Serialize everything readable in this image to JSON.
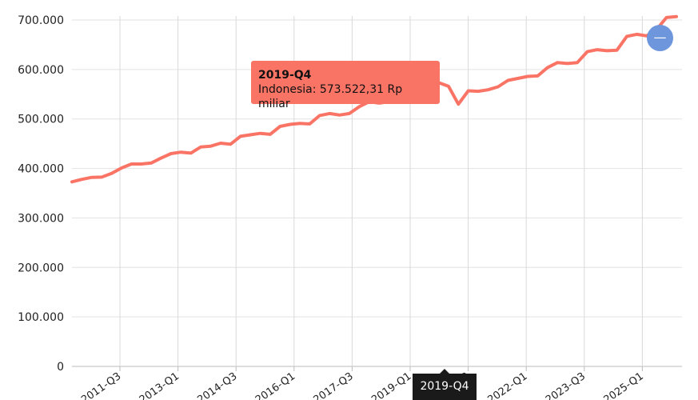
{
  "chart_data": {
    "type": "line",
    "series": [
      {
        "values": [
          373000,
          378000,
          382000,
          382500,
          390000,
          401000,
          409000,
          409000,
          411000,
          421000,
          430000,
          433000,
          431000,
          443500,
          445000,
          451000,
          449000,
          465000,
          468000,
          471000,
          469000,
          485000,
          489000,
          491000,
          490000,
          507000,
          511000,
          508000,
          511000,
          525000,
          535000,
          532000,
          535000,
          550000,
          555000,
          566000,
          573522.31,
          573522.31,
          566000,
          530000,
          557000,
          556000,
          559000,
          565000,
          578000,
          582000,
          586000,
          587000,
          604000,
          614000,
          612000,
          614000,
          636000,
          640000,
          638000,
          639000,
          667000,
          671000,
          668000,
          681000,
          705000,
          707000
        ]
      }
    ],
    "x_tick_labels": [
      "2011-Q3",
      "2013-Q1",
      "2014-Q3",
      "2016-Q1",
      "2017-Q3",
      "2019-Q1",
      "2020-Q3",
      "2022-Q1",
      "2023-Q3",
      "2025-Q1"
    ],
    "y_tick_labels": [
      "0",
      "100.000",
      "200.000",
      "300.000",
      "400.000",
      "500.000",
      "600.000",
      "700.000"
    ],
    "ylim": [
      0,
      700000
    ],
    "grid": true,
    "line_color": "#fa7466"
  },
  "tooltip": {
    "title": "2019-Q4",
    "body": "Indonesia: 573.522,31 Rp miliar"
  },
  "cursor_label": "2019-Q4",
  "zoom_button": {
    "label": "—",
    "color": "#6d96dc"
  }
}
